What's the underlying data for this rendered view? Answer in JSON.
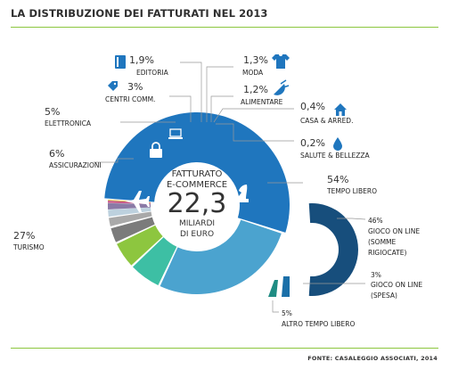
{
  "title": "LA DISTRIBUZIONE DEI FATTURATI NEL 2013",
  "source": "FONTE: CASALEGGIO ASSOCIATI, 2014",
  "center": {
    "line1": "FATTURATO",
    "line2": "E-COMMERCE",
    "value": "22,3",
    "line3": "MILIARDI",
    "line4": "DI EURO"
  },
  "chart_data": {
    "type": "pie",
    "total": "22,3",
    "slices": [
      {
        "name": "TEMPO LIBERO",
        "value": 54,
        "pct_label": "54%",
        "color": "#1f76be",
        "icon": "chess-knight-icon"
      },
      {
        "name": "TURISMO",
        "value": 27,
        "pct_label": "27%",
        "color": "#4ba3cf",
        "icon": "airplane-icon"
      },
      {
        "name": "ASSICURAZIONI",
        "value": 6,
        "pct_label": "6%",
        "color": "#3dbfa4",
        "icon": "lock-icon"
      },
      {
        "name": "ELETTRONICA",
        "value": 5,
        "pct_label": "5%",
        "color": "#8dc63f",
        "icon": "laptop-icon"
      },
      {
        "name": "CENTRI COMM.",
        "value": 3,
        "pct_label": "3%",
        "color": "#7b7b7b",
        "icon": "tag-icon"
      },
      {
        "name": "EDITORIA",
        "value": 1.9,
        "pct_label": "1,9%",
        "color": "#a9a9a9",
        "icon": "book-icon"
      },
      {
        "name": "MODA",
        "value": 1.3,
        "pct_label": "1,3%",
        "color": "#bdd1de",
        "icon": "tshirt-icon"
      },
      {
        "name": "ALIMENTARE",
        "value": 1.2,
        "pct_label": "1,2%",
        "color": "#8a7aa6",
        "icon": "food-icon"
      },
      {
        "name": "CASA & ARRED.",
        "value": 0.4,
        "pct_label": "0,4%",
        "color": "#c2477a",
        "icon": "house-icon"
      },
      {
        "name": "SALUTE & BELLEZZA",
        "value": 0.2,
        "pct_label": "0,2%",
        "color": "#d5ae2c",
        "icon": "drop-icon"
      }
    ],
    "sub_breakdown": {
      "of": "TEMPO LIBERO",
      "slices": [
        {
          "name": "GIOCO ON LINE (SOMME RIGIOCATE)",
          "lines": [
            "GIOCO ON LINE",
            "(SOMME",
            "RIGIOCATE)"
          ],
          "value": 46,
          "pct_label": "46%",
          "color": "#174e7c"
        },
        {
          "name": "GIOCO ON LINE (SPESA)",
          "lines": [
            "GIOCO ON LINE",
            "(SPESA)"
          ],
          "value": 3,
          "pct_label": "3%",
          "color": "#1a6fa8"
        },
        {
          "name": "ALTRO TEMPO LIBERO",
          "lines": [
            "ALTRO TEMPO LIBERO"
          ],
          "value": 5,
          "pct_label": "5%",
          "color": "#1f8c83"
        }
      ]
    }
  }
}
